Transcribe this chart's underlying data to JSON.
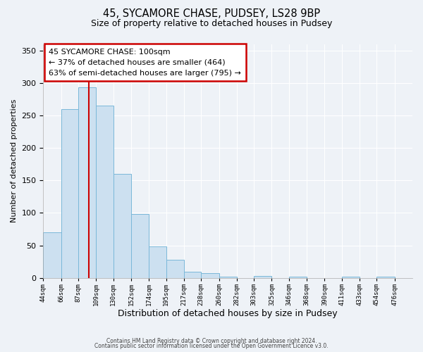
{
  "title": "45, SYCAMORE CHASE, PUDSEY, LS28 9BP",
  "subtitle": "Size of property relative to detached houses in Pudsey",
  "xlabel": "Distribution of detached houses by size in Pudsey",
  "ylabel": "Number of detached properties",
  "bar_color": "#cce0f0",
  "bar_edge_color": "#7ab8d9",
  "bin_edges": [
    44,
    66,
    87,
    109,
    130,
    152,
    174,
    195,
    217,
    238,
    260,
    282,
    303,
    325,
    346,
    368,
    390,
    411,
    433,
    454,
    476,
    498
  ],
  "bar_heights": [
    70,
    260,
    293,
    265,
    160,
    98,
    48,
    28,
    10,
    7,
    2,
    0,
    3,
    0,
    2,
    0,
    0,
    2,
    0,
    2,
    0
  ],
  "tick_labels": [
    "44sqm",
    "66sqm",
    "87sqm",
    "109sqm",
    "130sqm",
    "152sqm",
    "174sqm",
    "195sqm",
    "217sqm",
    "238sqm",
    "260sqm",
    "282sqm",
    "303sqm",
    "325sqm",
    "346sqm",
    "368sqm",
    "390sqm",
    "411sqm",
    "433sqm",
    "454sqm",
    "476sqm"
  ],
  "property_size": 100,
  "vline_color": "#cc0000",
  "annotation_line1": "45 SYCAMORE CHASE: 100sqm",
  "annotation_line2": "← 37% of detached houses are smaller (464)",
  "annotation_line3": "63% of semi-detached houses are larger (795) →",
  "annotation_box_color": "#ffffff",
  "annotation_border_color": "#cc0000",
  "ylim": [
    0,
    360
  ],
  "yticks": [
    0,
    50,
    100,
    150,
    200,
    250,
    300,
    350
  ],
  "footer1": "Contains HM Land Registry data © Crown copyright and database right 2024.",
  "footer2": "Contains public sector information licensed under the Open Government Licence v3.0.",
  "background_color": "#eef2f7",
  "grid_color": "#ffffff"
}
